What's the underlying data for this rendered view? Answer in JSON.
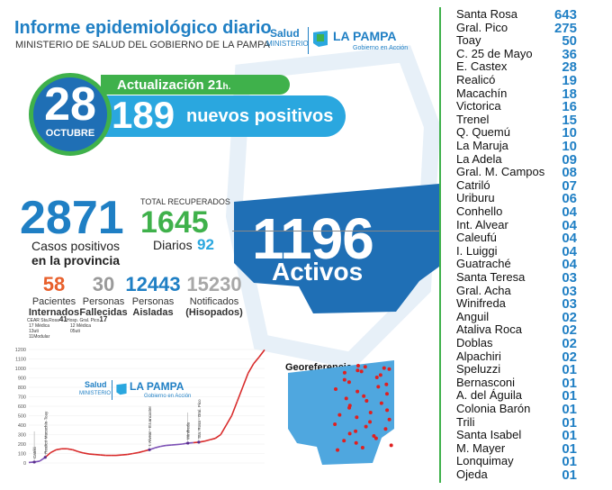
{
  "header": {
    "title": "Informe epidemiológico diario",
    "subtitle": "MINISTERIO DE SALUD DEL GOBIERNO DE LA PAMPA"
  },
  "logo": {
    "salud": "Salud",
    "ministerio": "MINISTERIO",
    "la_pampa": "LA PAMPA",
    "gobierno": "Gobierno en Acción"
  },
  "date": {
    "day": "28",
    "month": "OCTUBRE"
  },
  "update": {
    "label": "Actualización 21",
    "suffix": "h."
  },
  "new_positives": {
    "value": "189",
    "label": "nuevos positivos"
  },
  "total_cases": {
    "value": "2871",
    "label_1": "Casos positivos",
    "label_2": "en la provincia"
  },
  "recovered": {
    "label": "TOTAL RECUPERADOS",
    "value": "1645",
    "daily_label": "Diarios",
    "daily_value": "92"
  },
  "active": {
    "value": "1196",
    "label": "Activos"
  },
  "stats": [
    {
      "value": "58",
      "label_1": "Pacientes",
      "label_2": "Internados",
      "color": "#e8602c"
    },
    {
      "value": "30",
      "label_1": "Personas",
      "label_2": "Fallecidas",
      "color": "#9a9a9a"
    },
    {
      "value": "12443",
      "label_1": "Personas",
      "label_2": "Aisladas",
      "color": "#1f7fc4"
    },
    {
      "value": "15230",
      "label_1": "Notificados",
      "label_2": "(Hisopados)",
      "color": "#a8a8a8"
    }
  ],
  "hospital_notes": {
    "a": "CEAR Sta.Rosa",
    "a_val": "41",
    "b": "Hosp. Gral. Pico",
    "b_val": "17",
    "c1": "17 Médica",
    "c2": "13uti",
    "c3": "11Modular",
    "d1": "12 Médica",
    "d2": "05uti"
  },
  "georeference": {
    "label": "Georeferencia"
  },
  "localities": [
    {
      "name": "Santa Rosa",
      "count": "643"
    },
    {
      "name": "Gral. Pico",
      "count": "275"
    },
    {
      "name": "Toay",
      "count": "50"
    },
    {
      "name": "C. 25 de Mayo",
      "count": "36"
    },
    {
      "name": "E. Castex",
      "count": "28"
    },
    {
      "name": "Realicó",
      "count": "19"
    },
    {
      "name": "Macachín",
      "count": "18"
    },
    {
      "name": "Victorica",
      "count": "16"
    },
    {
      "name": "Trenel",
      "count": "15"
    },
    {
      "name": "Q. Quemú",
      "count": "10"
    },
    {
      "name": "La Maruja",
      "count": "10"
    },
    {
      "name": "La Adela",
      "count": "09"
    },
    {
      "name": "Gral. M. Campos",
      "count": "08"
    },
    {
      "name": "Catriló",
      "count": "07"
    },
    {
      "name": "Uriburu",
      "count": "06"
    },
    {
      "name": "Conhello",
      "count": "04"
    },
    {
      "name": "Int. Alvear",
      "count": "04"
    },
    {
      "name": "Caleufú",
      "count": "04"
    },
    {
      "name": "I. Luiggi",
      "count": "04"
    },
    {
      "name": "Guatraché",
      "count": "04"
    },
    {
      "name": "Santa Teresa",
      "count": "03"
    },
    {
      "name": "Gral. Acha",
      "count": "03"
    },
    {
      "name": "Winifreda",
      "count": "03"
    },
    {
      "name": "Anguil",
      "count": "02"
    },
    {
      "name": "Ataliva Roca",
      "count": "02"
    },
    {
      "name": "Doblas",
      "count": "02"
    },
    {
      "name": "Alpachiri",
      "count": "02"
    },
    {
      "name": "Speluzzi",
      "count": "01"
    },
    {
      "name": "Bernasconi",
      "count": "01"
    },
    {
      "name": "A. del Águila",
      "count": "01"
    },
    {
      "name": "Colonia Barón",
      "count": "01"
    },
    {
      "name": "Trili",
      "count": "01"
    },
    {
      "name": "Santa Isabel",
      "count": "01"
    },
    {
      "name": "M. Mayer",
      "count": "01"
    },
    {
      "name": "Lonquimay",
      "count": "01"
    },
    {
      "name": "Ojeda",
      "count": "01"
    }
  ],
  "chart_data": {
    "type": "line",
    "title": "",
    "xlabel": "",
    "ylabel": "",
    "ylim": [
      0,
      1200
    ],
    "yticks": [
      "0",
      "100",
      "200",
      "300",
      "400",
      "500",
      "600",
      "700",
      "800",
      "900",
      "1000",
      "1100",
      "1200"
    ],
    "series": [
      {
        "values": [
          5,
          10,
          20,
          60,
          110,
          140,
          150,
          150,
          140,
          120,
          105,
          95,
          90,
          85,
          80,
          80,
          80,
          85,
          90,
          100,
          110,
          125,
          140,
          160,
          175,
          185,
          190,
          195,
          200,
          210,
          215,
          220,
          230,
          245,
          260,
          300,
          400,
          500,
          650,
          800,
          950,
          1050,
          1120,
          1196
        ],
        "color": "#d82a2a"
      }
    ],
    "annotations": [
      {
        "label": "Catriló",
        "index": 1
      },
      {
        "label": "Realicó-Macachín-Toay",
        "index": 3
      },
      {
        "label": "I. Alvear - E.Lancaster",
        "index": 22
      },
      {
        "label": "Winifreda",
        "index": 29
      },
      {
        "label": "Sta. Rosa - Gral. Pico",
        "index": 31
      }
    ],
    "colors": {
      "early": "#7b4fb5",
      "late": "#d82a2a"
    }
  },
  "colors": {
    "blue": "#1f7fc4",
    "light_blue": "#2aa7df",
    "green": "#3fb14b",
    "active_map": "#1f6fb5"
  }
}
